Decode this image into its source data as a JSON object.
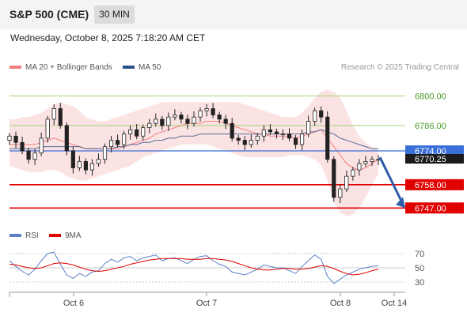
{
  "header": {
    "title": "S&P 500 (CME)",
    "interval": "30 MIN"
  },
  "datetime": "Wednesday, October 8, 2025 7:18:20 AM CET",
  "attribution": "Research © 2025 Trading Central",
  "legend": {
    "bollinger": "MA 20 + Bollinger Bands",
    "ma50": "MA 50",
    "rsi": "RSI",
    "rsi_ma": "9MA"
  },
  "colors": {
    "bollinger": "#f08080",
    "ma50": "#2a4f8a",
    "rsi": "#5b80c8",
    "rsi_ma": "#e00000",
    "resistance": "#9fd37a",
    "support": "#e00000",
    "current": "#3a6fd8",
    "forecast": "#2f5fa8"
  },
  "chart_data": [
    {
      "type": "candlestick",
      "title": "S&P 500 (CME)",
      "x_ticks": [
        "Oct 6",
        "Oct 7",
        "Oct 8",
        "Oct 14"
      ],
      "ylim": [
        6740,
        6808
      ],
      "levels": {
        "resistance": [
          6800.0,
          6786.0
        ],
        "support": [
          6758.0,
          6747.0
        ],
        "current": 6774.0,
        "last": 6770.25
      },
      "level_labels": {
        "r1": "6800.00",
        "r2": "6786.00",
        "current": "6774.00",
        "last": "6770.25",
        "s1": "6758.00",
        "s2": "6747.00"
      },
      "forecast": {
        "from": 6771,
        "to": 6747.0,
        "direction": "down"
      },
      "close": [
        6781,
        6778,
        6774,
        6770,
        6773,
        6780,
        6789,
        6794,
        6786,
        6774,
        6766,
        6769,
        6765,
        6768,
        6770,
        6776,
        6779,
        6777,
        6782,
        6784,
        6781,
        6785,
        6787,
        6789,
        6786,
        6790,
        6791,
        6789,
        6787,
        6790,
        6793,
        6794,
        6791,
        6789,
        6787,
        6780,
        6779,
        6777,
        6779,
        6781,
        6784,
        6783,
        6782,
        6782,
        6780,
        6777,
        6782,
        6788,
        6793,
        6790,
        6770,
        6752,
        6756,
        6762,
        6765,
        6768,
        6769,
        6770,
        6770
      ],
      "ma20": [
        6777,
        6777,
        6777,
        6777,
        6777,
        6778,
        6779,
        6780,
        6779,
        6778,
        6777,
        6776,
        6775,
        6775,
        6775,
        6775,
        6775,
        6775,
        6776,
        6777,
        6778,
        6779,
        6780,
        6782,
        6783,
        6784,
        6785,
        6786,
        6787,
        6787,
        6787,
        6788,
        6788,
        6788,
        6787,
        6786,
        6785,
        6784,
        6783,
        6782,
        6782,
        6781,
        6781,
        6781,
        6781,
        6780,
        6781,
        6782,
        6783,
        6784,
        6780,
        6776,
        6772,
        6768,
        6766,
        6765,
        6766,
        6768,
        6770
      ],
      "bb_upper": [
        6789,
        6789,
        6790,
        6790,
        6791,
        6792,
        6794,
        6796,
        6797,
        6796,
        6795,
        6793,
        6790,
        6789,
        6788,
        6788,
        6789,
        6790,
        6791,
        6792,
        6793,
        6794,
        6795,
        6796,
        6797,
        6797,
        6797,
        6797,
        6797,
        6797,
        6797,
        6797,
        6797,
        6797,
        6797,
        6797,
        6797,
        6796,
        6795,
        6794,
        6793,
        6792,
        6791,
        6790,
        6790,
        6790,
        6792,
        6795,
        6799,
        6802,
        6803,
        6802,
        6799,
        6793,
        6786,
        6781,
        6778,
        6776,
        6775
      ],
      "bb_lower": [
        6767,
        6766,
        6765,
        6764,
        6764,
        6764,
        6765,
        6765,
        6764,
        6762,
        6761,
        6760,
        6760,
        6761,
        6762,
        6763,
        6764,
        6765,
        6766,
        6767,
        6769,
        6771,
        6772,
        6773,
        6774,
        6775,
        6776,
        6777,
        6777,
        6777,
        6777,
        6777,
        6776,
        6775,
        6774,
        6773,
        6772,
        6771,
        6771,
        6771,
        6771,
        6771,
        6771,
        6771,
        6772,
        6772,
        6772,
        6771,
        6770,
        6767,
        6760,
        6750,
        6745,
        6743,
        6744,
        6747,
        6752,
        6758,
        6763
      ],
      "ma50": [
        6775,
        6775,
        6775,
        6775,
        6775,
        6776,
        6776,
        6776,
        6776,
        6776,
        6776,
        6776,
        6775,
        6775,
        6775,
        6775,
        6775,
        6776,
        6776,
        6777,
        6777,
        6778,
        6778,
        6779,
        6779,
        6780,
        6780,
        6781,
        6781,
        6781,
        6782,
        6782,
        6782,
        6782,
        6782,
        6782,
        6782,
        6782,
        6782,
        6782,
        6782,
        6782,
        6782,
        6782,
        6782,
        6782,
        6782,
        6783,
        6783,
        6784,
        6783,
        6782,
        6780,
        6779,
        6778,
        6777,
        6776,
        6775,
        6775
      ]
    },
    {
      "type": "line",
      "title": "RSI",
      "x_ticks": [
        "Oct 6",
        "Oct 7",
        "Oct 8",
        "Oct 14"
      ],
      "ylim": [
        20,
        80
      ],
      "y_ticks": [
        "70",
        "50",
        "30"
      ],
      "series": [
        {
          "name": "RSI",
          "values": [
            60,
            52,
            45,
            40,
            48,
            60,
            70,
            72,
            55,
            40,
            35,
            42,
            38,
            44,
            46,
            56,
            62,
            58,
            64,
            66,
            60,
            64,
            66,
            68,
            60,
            63,
            64,
            60,
            56,
            62,
            66,
            67,
            60,
            55,
            52,
            44,
            42,
            40,
            44,
            48,
            54,
            52,
            50,
            50,
            46,
            42,
            52,
            60,
            68,
            62,
            38,
            28,
            34,
            40,
            44,
            48,
            50,
            52,
            53
          ]
        },
        {
          "name": "9MA",
          "values": [
            55,
            54,
            52,
            50,
            49,
            50,
            53,
            56,
            57,
            56,
            54,
            51,
            48,
            46,
            45,
            46,
            48,
            50,
            52,
            55,
            57,
            59,
            61,
            62,
            63,
            63,
            63,
            63,
            62,
            62,
            62,
            63,
            63,
            62,
            61,
            59,
            56,
            53,
            50,
            48,
            47,
            47,
            48,
            49,
            49,
            48,
            48,
            49,
            51,
            53,
            52,
            49,
            45,
            42,
            40,
            41,
            43,
            46,
            48
          ]
        }
      ]
    }
  ]
}
